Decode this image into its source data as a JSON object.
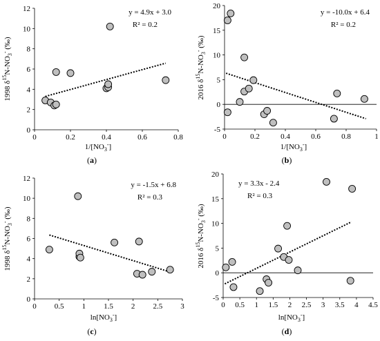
{
  "chart_data": [
    {
      "id": "a",
      "type": "scatter",
      "panel_label_prefix": "(",
      "panel_label_letter": "a",
      "panel_label_suffix": ")",
      "xlabel": "1/[NO3-]",
      "ylabel": "1998 δ15N-NO3- (‰)",
      "xlim": [
        0,
        0.8
      ],
      "ylim": [
        0,
        12
      ],
      "xticks": [
        "0",
        "0.2",
        "0.4",
        "0.6",
        "0.8"
      ],
      "yticks": [
        "0",
        "2",
        "4",
        "6",
        "8",
        "10",
        "12"
      ],
      "equation": "y = 4.9x + 3.0",
      "r2": "R² = 0.2",
      "trend": {
        "slope": 4.9,
        "intercept": 3.0,
        "x_range": [
          0.06,
          0.73
        ]
      },
      "points": [
        {
          "x": 0.06,
          "y": 2.9
        },
        {
          "x": 0.09,
          "y": 2.7
        },
        {
          "x": 0.11,
          "y": 2.4
        },
        {
          "x": 0.12,
          "y": 2.5
        },
        {
          "x": 0.12,
          "y": 5.7
        },
        {
          "x": 0.2,
          "y": 5.6
        },
        {
          "x": 0.4,
          "y": 4.1
        },
        {
          "x": 0.41,
          "y": 4.2
        },
        {
          "x": 0.41,
          "y": 4.5
        },
        {
          "x": 0.42,
          "y": 10.2
        },
        {
          "x": 0.73,
          "y": 4.9
        }
      ]
    },
    {
      "id": "b",
      "type": "scatter",
      "panel_label_prefix": "(",
      "panel_label_letter": "b",
      "panel_label_suffix": ")",
      "xlabel": "1/[NO3-]",
      "ylabel": "2016 δ15N-NO3- (‰)",
      "xlim": [
        0,
        1
      ],
      "ylim": [
        -5,
        20
      ],
      "xticks": [
        "0",
        "0.2",
        "0.4",
        "0.6",
        "0.8",
        "1"
      ],
      "yticks": [
        "-5",
        "0",
        "5",
        "10",
        "15",
        "20"
      ],
      "equation": "y = -10.0x + 6.4",
      "r2": "R² = 0.2",
      "trend": {
        "slope": -10.0,
        "intercept": 6.4,
        "x_range": [
          0.01,
          0.93
        ]
      },
      "points": [
        {
          "x": 0.02,
          "y": 17.0
        },
        {
          "x": 0.04,
          "y": 18.4
        },
        {
          "x": 0.02,
          "y": -1.6
        },
        {
          "x": 0.1,
          "y": 0.5
        },
        {
          "x": 0.13,
          "y": 9.5
        },
        {
          "x": 0.13,
          "y": 2.6
        },
        {
          "x": 0.16,
          "y": 3.2
        },
        {
          "x": 0.19,
          "y": 4.9
        },
        {
          "x": 0.26,
          "y": -2.0
        },
        {
          "x": 0.28,
          "y": -1.3
        },
        {
          "x": 0.32,
          "y": -3.7
        },
        {
          "x": 0.72,
          "y": -2.9
        },
        {
          "x": 0.74,
          "y": 2.2
        },
        {
          "x": 0.92,
          "y": 1.1
        }
      ]
    },
    {
      "id": "c",
      "type": "scatter",
      "panel_label_prefix": "(",
      "panel_label_letter": "c",
      "panel_label_suffix": ")",
      "xlabel": "ln[NO3-]",
      "ylabel": "1998 δ15N-NO3- (‰)",
      "xlim": [
        0,
        3
      ],
      "ylim": [
        0,
        12
      ],
      "xticks": [
        "0",
        "0.5",
        "1",
        "1.5",
        "2",
        "2.5",
        "3"
      ],
      "yticks": [
        "0",
        "2",
        "4",
        "6",
        "8",
        "10",
        "12"
      ],
      "equation": "y = -1.5x + 6.8",
      "r2": "R² = 0.3",
      "trend": {
        "slope": -1.5,
        "intercept": 6.8,
        "x_range": [
          0.3,
          2.75
        ]
      },
      "points": [
        {
          "x": 0.3,
          "y": 4.9
        },
        {
          "x": 0.88,
          "y": 10.2
        },
        {
          "x": 0.91,
          "y": 4.2
        },
        {
          "x": 0.91,
          "y": 4.5
        },
        {
          "x": 0.93,
          "y": 4.1
        },
        {
          "x": 1.62,
          "y": 5.6
        },
        {
          "x": 2.08,
          "y": 2.5
        },
        {
          "x": 2.12,
          "y": 5.7
        },
        {
          "x": 2.19,
          "y": 2.4
        },
        {
          "x": 2.38,
          "y": 2.7
        },
        {
          "x": 2.75,
          "y": 2.9
        }
      ]
    },
    {
      "id": "d",
      "type": "scatter",
      "panel_label_prefix": "(",
      "panel_label_letter": "d",
      "panel_label_suffix": ")",
      "xlabel": "ln[NO3-]",
      "ylabel": "2016 δ15N-NO3- (‰)",
      "xlim": [
        0,
        4.5
      ],
      "ylim": [
        -5,
        20
      ],
      "xticks": [
        "0",
        "0.5",
        "1",
        "1.5",
        "2",
        "2.5",
        "3",
        "3.5",
        "4",
        "4.5"
      ],
      "yticks": [
        "-5",
        "0",
        "5",
        "10",
        "15",
        "20"
      ],
      "equation": "y = 3.3x - 2.4",
      "r2": "R² = 0.3",
      "trend": {
        "slope": 3.3,
        "intercept": -2.4,
        "x_range": [
          0.05,
          3.85
        ]
      },
      "points": [
        {
          "x": 0.08,
          "y": 1.1
        },
        {
          "x": 0.27,
          "y": 2.2
        },
        {
          "x": 0.31,
          "y": -2.9
        },
        {
          "x": 1.1,
          "y": -3.7
        },
        {
          "x": 1.3,
          "y": -1.3
        },
        {
          "x": 1.36,
          "y": -2.0
        },
        {
          "x": 1.65,
          "y": 4.9
        },
        {
          "x": 1.82,
          "y": 3.2
        },
        {
          "x": 1.92,
          "y": 9.5
        },
        {
          "x": 1.97,
          "y": 2.6
        },
        {
          "x": 2.24,
          "y": 0.5
        },
        {
          "x": 3.1,
          "y": 18.4
        },
        {
          "x": 3.82,
          "y": -1.6
        },
        {
          "x": 3.87,
          "y": 17.0
        }
      ]
    }
  ]
}
